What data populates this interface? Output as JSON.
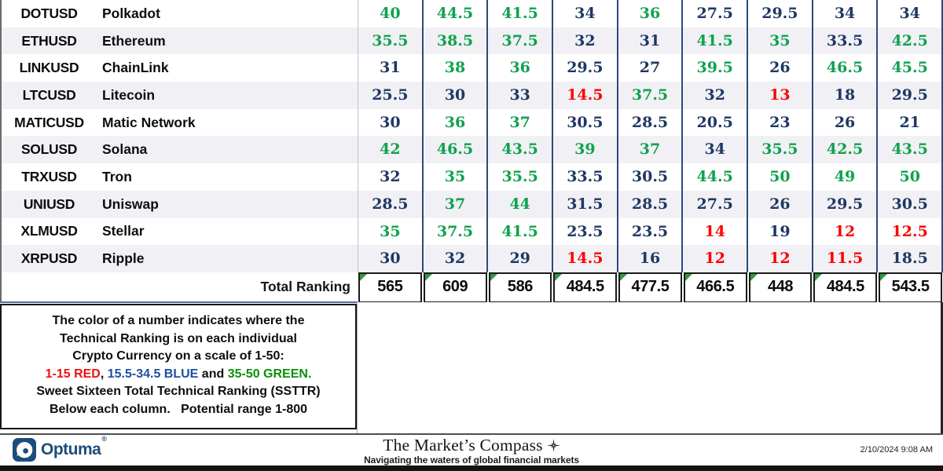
{
  "colors": {
    "number_green": "#0fa24e",
    "number_blue": "#1f3864",
    "number_red": "#fe0000",
    "column_border_navy": "#2a4b7c",
    "triangle_green": "#2e9b3c",
    "legend_red": "#ee1111",
    "legend_blue": "#1d50a2",
    "legend_green": "#0a8f0a",
    "brand_blue": "#1b4c7c",
    "alt_row_bg": "#f1f1f5"
  },
  "color_scale": [
    {
      "max": 15,
      "color": "#fe0000",
      "label": "RED"
    },
    {
      "max": 34.5,
      "color": "#1f3864",
      "label": "BLUE"
    },
    {
      "max": 50,
      "color": "#0fa24e",
      "label": "GREEN"
    }
  ],
  "table": {
    "rows": [
      {
        "ticker": "DOTUSD",
        "name": "Polkadot",
        "values": [
          40,
          44.5,
          41.5,
          34,
          36,
          27.5,
          29.5,
          34,
          34
        ]
      },
      {
        "ticker": "ETHUSD",
        "name": "Ethereum",
        "values": [
          35.5,
          38.5,
          37.5,
          32,
          31,
          41.5,
          35,
          33.5,
          42.5
        ]
      },
      {
        "ticker": "LINKUSD",
        "name": "ChainLink",
        "values": [
          31,
          38,
          36,
          29.5,
          27,
          39.5,
          26,
          46.5,
          45.5
        ]
      },
      {
        "ticker": "LTCUSD",
        "name": "Litecoin",
        "values": [
          25.5,
          30,
          33,
          14.5,
          37.5,
          32,
          13,
          18,
          29.5
        ]
      },
      {
        "ticker": "MATICUSD",
        "name": "Matic Network",
        "values": [
          30,
          36,
          37,
          30.5,
          28.5,
          20.5,
          23,
          26,
          21
        ]
      },
      {
        "ticker": "SOLUSD",
        "name": "Solana",
        "values": [
          42,
          46.5,
          43.5,
          39,
          37,
          34,
          35.5,
          42.5,
          43.5
        ]
      },
      {
        "ticker": "TRXUSD",
        "name": "Tron",
        "values": [
          32,
          35,
          35.5,
          33.5,
          30.5,
          44.5,
          50,
          49,
          50
        ]
      },
      {
        "ticker": "UNIUSD",
        "name": "Uniswap",
        "values": [
          28.5,
          37,
          44,
          31.5,
          28.5,
          27.5,
          26,
          29.5,
          30.5
        ]
      },
      {
        "ticker": "XLMUSD",
        "name": "Stellar",
        "values": [
          35,
          37.5,
          41.5,
          23.5,
          23.5,
          14,
          19,
          12,
          12.5
        ]
      },
      {
        "ticker": "XRPUSD",
        "name": "Ripple",
        "values": [
          30,
          32,
          29,
          14.5,
          16,
          12,
          12,
          11.5,
          18.5
        ]
      }
    ],
    "total_label": "Total Ranking",
    "totals": [
      "565",
      "609",
      "586",
      "484.5",
      "477.5",
      "466.5",
      "448",
      "484.5",
      "543.5"
    ]
  },
  "legend": {
    "lines": [
      [
        {
          "t": "The color of a number indicates where the"
        }
      ],
      [
        {
          "t": "Technical Ranking is on each individual"
        }
      ],
      [
        {
          "t": "Crypto Currency on a scale of 1-50:"
        }
      ],
      [
        {
          "t": "1-15 RED",
          "c": "#ee1111"
        },
        {
          "t": ", "
        },
        {
          "t": "15.5-34.5 BLUE",
          "c": "#1d50a2"
        },
        {
          "t": " and "
        },
        {
          "t": "35-50 GREEN.",
          "c": "#0a8f0a"
        }
      ],
      [
        {
          "t": "Sweet Sixteen Total Technical Ranking (SSTTR)"
        }
      ],
      [
        {
          "t": "Below each column.   Potential range 1-800"
        }
      ]
    ]
  },
  "footer": {
    "brand": "Optuma",
    "brand_mark": "®",
    "title": "The Market’s Compass",
    "subtitle": "Navigating the waters of global financial markets",
    "timestamp": "2/10/2024 9:08 AM"
  }
}
